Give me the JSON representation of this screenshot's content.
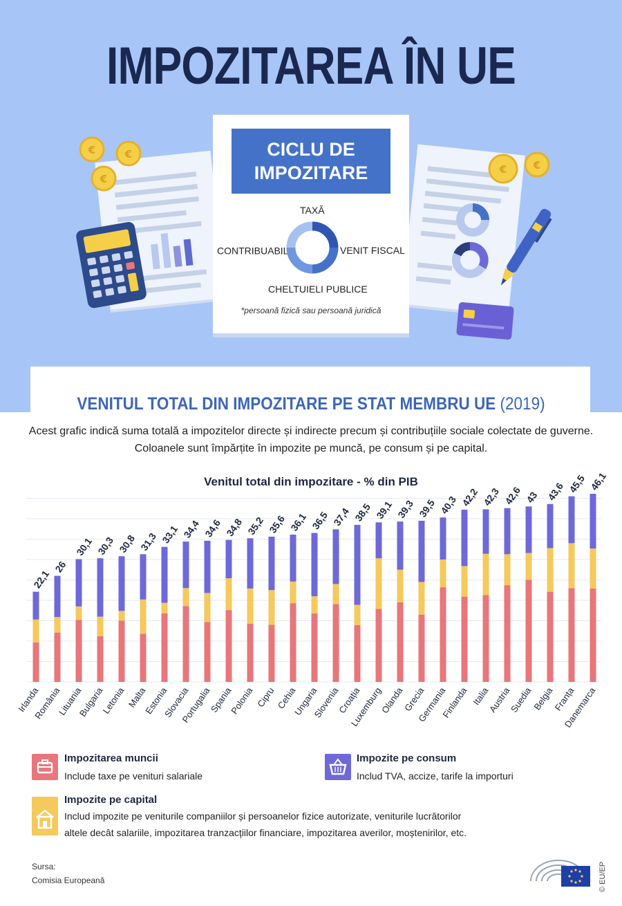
{
  "header": {
    "title": "IMPOZITAREA ÎN UE"
  },
  "cycle": {
    "title_line1": "CICLU DE",
    "title_line2": "IMPOZITARE",
    "top": "TAXĂ",
    "left": "CONTRIBUABIL",
    "left_mark": "*",
    "right": "VENIT FISCAL",
    "bottom": "CHELTUIELI PUBLICE",
    "note": "*persoană fizică sau persoană juridică"
  },
  "section": {
    "title": "VENITUL TOTAL DIN IMPOZITARE PE STAT MEMBRU UE",
    "year": "(2019)",
    "desc_line1": "Acest grafic indică suma totală a impozitelor directe și indirecte precum și contribuțiile sociale colectate de guverne.",
    "desc_line2": "Coloanele sunt împărțite în impozite pe muncă, pe consum și pe capital."
  },
  "chart_data": {
    "type": "bar",
    "stacked": true,
    "title": "Venitul total din impozitare - % din PIB",
    "categories": [
      "Irlanda",
      "România",
      "Lituania",
      "Bulgaria",
      "Letonia",
      "Malta",
      "Estonia",
      "Slovacia",
      "Portugalia",
      "Spania",
      "Polonia",
      "Cipru",
      "Cehia",
      "Ungaria",
      "Slovenia",
      "Croația",
      "Luxemburg",
      "Olanda",
      "Grecia",
      "Germania",
      "Finlanda",
      "Italia",
      "Austria",
      "Suedia",
      "Belgia",
      "Franța",
      "Danemarca"
    ],
    "totals": [
      "22,1",
      "26",
      "30,1",
      "30,3",
      "30,8",
      "31,3",
      "33,1",
      "34,4",
      "34,6",
      "34,8",
      "35,2",
      "35,6",
      "36,1",
      "36,5",
      "37,4",
      "38,5",
      "39,1",
      "39,3",
      "39,5",
      "40,3",
      "42,2",
      "42,3",
      "42,6",
      "43",
      "43,6",
      "45,5",
      "46,1"
    ],
    "series": [
      {
        "name": "Impozitarea muncii",
        "color": "#e8767a",
        "values": [
          9.7,
          12.1,
          15.2,
          11.2,
          15.0,
          11.8,
          16.8,
          18.6,
          14.7,
          17.6,
          14.3,
          14.0,
          19.3,
          16.8,
          19.1,
          13.9,
          17.9,
          19.5,
          16.5,
          23.2,
          20.9,
          21.3,
          23.7,
          25.0,
          22.1,
          23.0,
          22.9
        ]
      },
      {
        "name": "Impozite pe capital",
        "color": "#f5c95c",
        "values": [
          5.6,
          3.8,
          3.3,
          4.8,
          2.4,
          8.4,
          2.6,
          4.4,
          7.1,
          7.8,
          8.6,
          8.5,
          5.3,
          4.2,
          4.9,
          5.0,
          12.4,
          8.0,
          8.0,
          6.8,
          7.5,
          10.1,
          7.6,
          6.6,
          10.7,
          11.0,
          9.8
        ]
      },
      {
        "name": "Impozite pe consum",
        "color": "#6e68d8",
        "values": [
          6.8,
          10.1,
          11.6,
          14.3,
          13.4,
          11.1,
          13.7,
          11.4,
          12.8,
          9.4,
          12.3,
          13.1,
          11.5,
          15.5,
          13.4,
          19.6,
          8.8,
          11.8,
          15.0,
          10.3,
          13.8,
          10.9,
          11.3,
          11.4,
          10.8,
          11.5,
          13.4
        ]
      }
    ],
    "ylim": [
      0,
      50
    ],
    "grid": true
  },
  "legend": {
    "labor": {
      "title": "Impozitarea muncii",
      "desc": "Include taxe pe venituri salariale",
      "icon": "briefcase-icon"
    },
    "consumption": {
      "title": "Impozite pe consum",
      "desc": "Includ TVA, accize, tarife la importuri",
      "icon": "basket-icon"
    },
    "capital": {
      "title": "Impozite pe capital",
      "desc_line1": "Includ impozite pe veniturile companiilor și persoanelor fizice autorizate, veniturile lucrătorilor",
      "desc_line2": "altele decât salariile, impozitarea tranzacțiilor financiare, impozitarea averilor, moștenirilor, etc.",
      "icon": "house-icon"
    }
  },
  "source": {
    "label": "Sursa:",
    "value": "Comisia Europeană"
  },
  "copyright": "© EU/EP",
  "colors": {
    "hero_bg": "#a8c5f7",
    "title": "#1a2850",
    "accent_blue": "#4472c8"
  }
}
